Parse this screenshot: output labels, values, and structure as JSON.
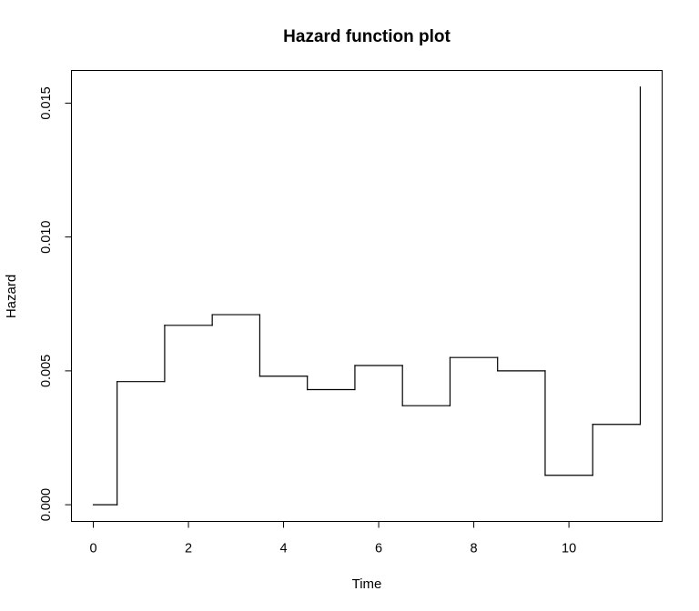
{
  "chart_data": {
    "type": "line",
    "title": "Hazard function plot",
    "xlabel": "Time",
    "ylabel": "Hazard",
    "xlim": [
      -0.46,
      11.96
    ],
    "ylim": [
      -0.000624,
      0.01622
    ],
    "x_ticks": [
      0,
      2,
      4,
      6,
      8,
      10
    ],
    "x_tick_labels": [
      "0",
      "2",
      "4",
      "6",
      "8",
      "10"
    ],
    "y_ticks": [
      0.0,
      0.005,
      0.01,
      0.015
    ],
    "y_tick_labels": [
      "0.000",
      "0.005",
      "0.010",
      "0.015"
    ],
    "grid": false,
    "line_color": "#000000",
    "series": [
      {
        "steps": [
          {
            "x0": 0,
            "x1": 0.5,
            "y": 0.0
          },
          {
            "x0": 0.5,
            "x1": 1.5,
            "y": 0.0046
          },
          {
            "x0": 1.5,
            "x1": 2.5,
            "y": 0.0067
          },
          {
            "x0": 2.5,
            "x1": 3.5,
            "y": 0.0071
          },
          {
            "x0": 3.5,
            "x1": 4.5,
            "y": 0.0048
          },
          {
            "x0": 4.5,
            "x1": 5.5,
            "y": 0.0043
          },
          {
            "x0": 5.5,
            "x1": 6.5,
            "y": 0.0052
          },
          {
            "x0": 6.5,
            "x1": 7.5,
            "y": 0.0037
          },
          {
            "x0": 7.5,
            "x1": 8.5,
            "y": 0.0055
          },
          {
            "x0": 8.5,
            "x1": 9.5,
            "y": 0.005
          },
          {
            "x0": 9.5,
            "x1": 10.5,
            "y": 0.0011
          },
          {
            "x0": 10.5,
            "x1": 11.5,
            "y": 0.003
          }
        ],
        "final_spike": {
          "x": 11.5,
          "y": 0.0156
        }
      }
    ]
  }
}
